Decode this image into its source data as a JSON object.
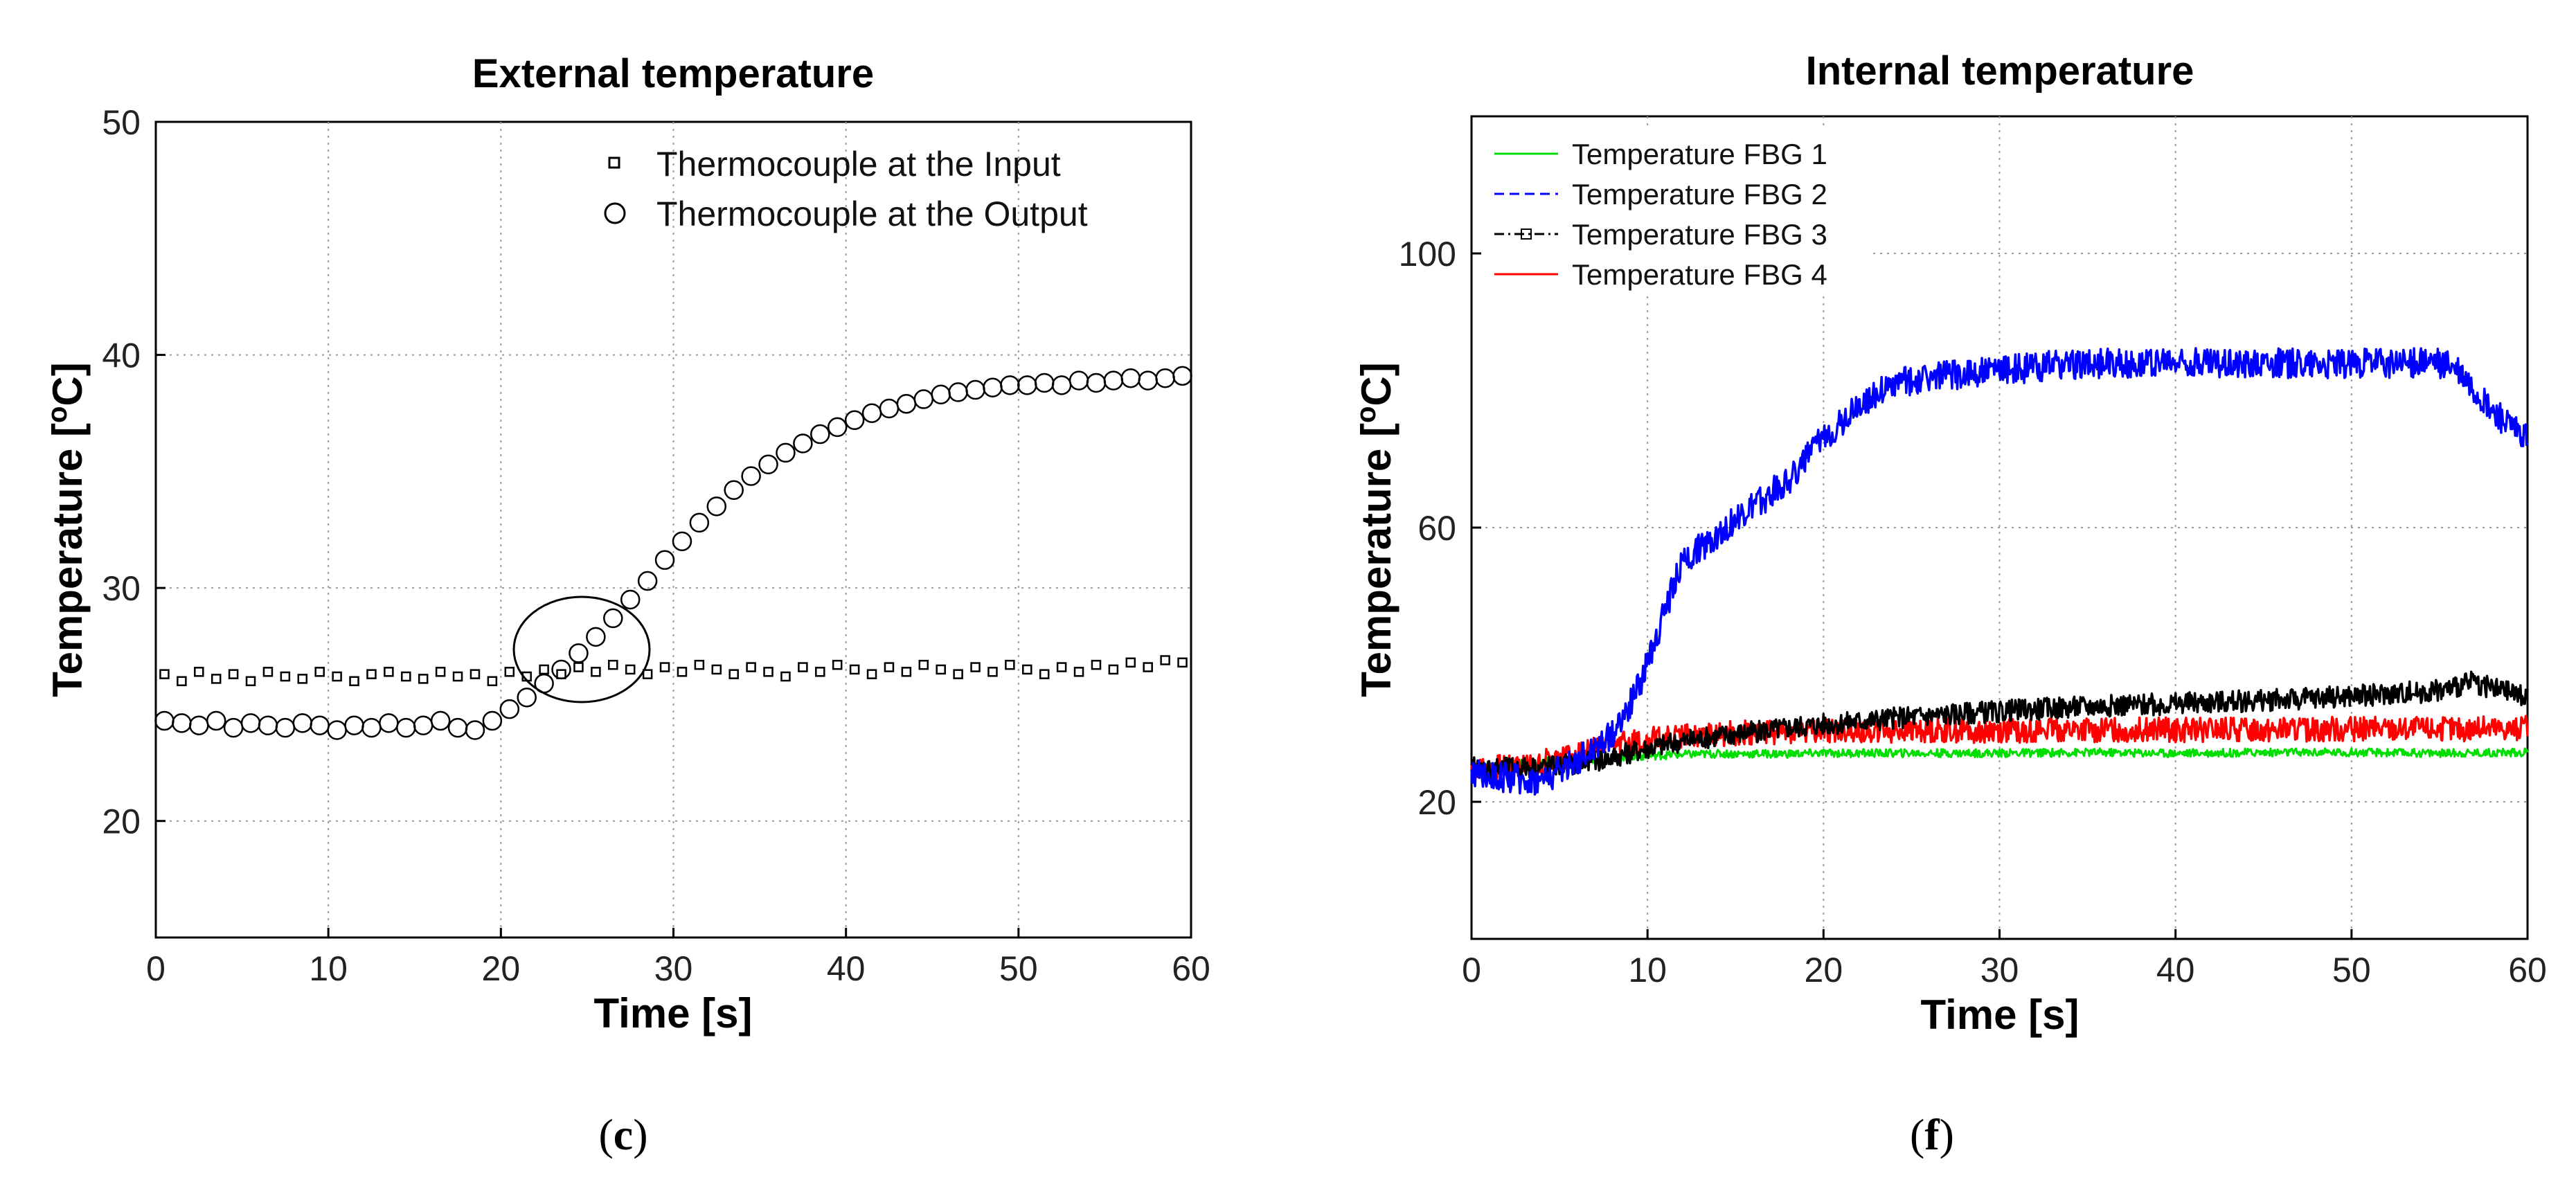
{
  "chart_data": [
    {
      "type": "scatter",
      "title": "External temperature",
      "xlabel": "Time [s]",
      "ylabel": "Temperature [",
      "ylabel_sup": "o",
      "ylabel_unit": "C]",
      "xlim": [
        0,
        60
      ],
      "ylim": [
        15,
        50
      ],
      "xticks": [
        0,
        10,
        20,
        30,
        40,
        50,
        60
      ],
      "yticks": [
        20,
        30,
        40,
        50
      ],
      "grid": true,
      "legend_position": "top-right",
      "caption_open": "(",
      "caption_letter": "c",
      "caption_close": ")",
      "annotation": "ellipse around the crossing of the two series near t = 25 s, 27 °C",
      "series": [
        {
          "name": "Thermocouple at the Input",
          "marker": "square",
          "color": "#000000",
          "x": [
            0.5,
            1.5,
            2.5,
            3.5,
            4.5,
            5.5,
            6.5,
            7.5,
            8.5,
            9.5,
            10.5,
            11.5,
            12.5,
            13.5,
            14.5,
            15.5,
            16.5,
            17.5,
            18.5,
            19.5,
            20.5,
            21.5,
            22.5,
            23.5,
            24.5,
            25.5,
            26.5,
            27.5,
            28.5,
            29.5,
            30.5,
            31.5,
            32.5,
            33.5,
            34.5,
            35.5,
            36.5,
            37.5,
            38.5,
            39.5,
            40.5,
            41.5,
            42.5,
            43.5,
            44.5,
            45.5,
            46.5,
            47.5,
            48.5,
            49.5,
            50.5,
            51.5,
            52.5,
            53.5,
            54.5,
            55.5,
            56.5,
            57.5,
            58.5,
            59.5
          ],
          "y": [
            26.3,
            26.0,
            26.4,
            26.1,
            26.3,
            26.0,
            26.4,
            26.2,
            26.1,
            26.4,
            26.2,
            26.0,
            26.3,
            26.4,
            26.2,
            26.1,
            26.4,
            26.2,
            26.3,
            26.0,
            26.4,
            26.2,
            26.5,
            26.3,
            26.6,
            26.4,
            26.7,
            26.5,
            26.3,
            26.6,
            26.4,
            26.7,
            26.5,
            26.3,
            26.6,
            26.4,
            26.2,
            26.6,
            26.4,
            26.7,
            26.5,
            26.3,
            26.6,
            26.4,
            26.7,
            26.5,
            26.3,
            26.6,
            26.4,
            26.7,
            26.5,
            26.3,
            26.6,
            26.4,
            26.7,
            26.5,
            26.8,
            26.6,
            26.9,
            26.8
          ]
        },
        {
          "name": "Thermocouple at the Output",
          "marker": "circle",
          "color": "#000000",
          "x": [
            0.5,
            1.5,
            2.5,
            3.5,
            4.5,
            5.5,
            6.5,
            7.5,
            8.5,
            9.5,
            10.5,
            11.5,
            12.5,
            13.5,
            14.5,
            15.5,
            16.5,
            17.5,
            18.5,
            19.5,
            20.5,
            21.5,
            22.5,
            23.5,
            24.5,
            25.5,
            26.5,
            27.5,
            28.5,
            29.5,
            30.5,
            31.5,
            32.5,
            33.5,
            34.5,
            35.5,
            36.5,
            37.5,
            38.5,
            39.5,
            40.5,
            41.5,
            42.5,
            43.5,
            44.5,
            45.5,
            46.5,
            47.5,
            48.5,
            49.5,
            50.5,
            51.5,
            52.5,
            53.5,
            54.5,
            55.5,
            56.5,
            57.5,
            58.5,
            59.5
          ],
          "y": [
            24.3,
            24.2,
            24.1,
            24.3,
            24.0,
            24.2,
            24.1,
            24.0,
            24.2,
            24.1,
            23.9,
            24.1,
            24.0,
            24.2,
            24.0,
            24.1,
            24.3,
            24.0,
            23.9,
            24.3,
            24.8,
            25.3,
            25.9,
            26.5,
            27.2,
            27.9,
            28.7,
            29.5,
            30.3,
            31.2,
            32.0,
            32.8,
            33.5,
            34.2,
            34.8,
            35.3,
            35.8,
            36.2,
            36.6,
            36.9,
            37.2,
            37.5,
            37.7,
            37.9,
            38.1,
            38.3,
            38.4,
            38.5,
            38.6,
            38.7,
            38.7,
            38.8,
            38.7,
            38.9,
            38.8,
            38.9,
            39.0,
            38.9,
            39.0,
            39.1
          ]
        }
      ]
    },
    {
      "type": "line",
      "title": "Internal temperature",
      "xlabel": "Time [s]",
      "ylabel": "Temperature [",
      "ylabel_sup": "o",
      "ylabel_unit": "C]",
      "xlim": [
        0,
        60
      ],
      "ylim": [
        0,
        120
      ],
      "xticks": [
        0,
        10,
        20,
        30,
        40,
        50,
        60
      ],
      "yticks": [
        20,
        60,
        100
      ],
      "grid": true,
      "legend_position": "top-left",
      "caption_open": "(",
      "caption_letter": "f",
      "caption_close": ")",
      "series": [
        {
          "name": "Temperature FBG 1",
          "color": "#00dd00",
          "style": "solid with x markers",
          "x": [
            0,
            2,
            4,
            6,
            8,
            10,
            12,
            14,
            16,
            18,
            20,
            25,
            30,
            35,
            40,
            45,
            50,
            55,
            60
          ],
          "y": [
            25,
            25.5,
            25.8,
            26.1,
            26.4,
            26.7,
            26.9,
            27.0,
            27.0,
            27.0,
            27.1,
            27.1,
            27.1,
            27.2,
            27.1,
            27.2,
            27.2,
            27.1,
            27.2
          ]
        },
        {
          "name": "Temperature FBG 2",
          "color": "#0000ff",
          "style": "dashed",
          "x": [
            0,
            2,
            4,
            6,
            8,
            9,
            10,
            11,
            12,
            14,
            16,
            18,
            20,
            22,
            24,
            26,
            30,
            35,
            40,
            45,
            50,
            55,
            56,
            57,
            58,
            59,
            60
          ],
          "y": [
            24,
            23.5,
            23,
            26,
            30,
            34,
            40,
            48,
            55,
            59,
            63,
            67,
            73,
            78,
            81,
            82,
            83,
            84,
            84,
            84,
            84,
            84,
            83,
            80,
            77,
            75,
            73
          ]
        },
        {
          "name": "Temperature FBG 3",
          "color": "#000000",
          "style": "dash-dot with square markers",
          "x": [
            0,
            2,
            4,
            6,
            8,
            10,
            12,
            14,
            16,
            18,
            20,
            25,
            30,
            35,
            40,
            45,
            50,
            55,
            57,
            58,
            60
          ],
          "y": [
            25,
            25,
            25.2,
            25.5,
            26.5,
            27.8,
            28.8,
            29.6,
            30.2,
            30.8,
            31.3,
            32.4,
            33.2,
            33.9,
            34.3,
            34.8,
            35.4,
            36.2,
            37.5,
            36.5,
            35.5
          ]
        },
        {
          "name": "Temperature FBG 4",
          "color": "#ff0000",
          "style": "solid with + markers",
          "x": [
            0,
            2,
            4,
            6,
            8,
            10,
            12,
            14,
            16,
            18,
            20,
            25,
            30,
            35,
            40,
            45,
            50,
            55,
            60
          ],
          "y": [
            25,
            25.2,
            25.8,
            27.0,
            28.2,
            29.1,
            29.6,
            29.9,
            30.1,
            30.2,
            30.3,
            30.4,
            30.4,
            30.5,
            30.5,
            30.5,
            30.6,
            30.6,
            30.7
          ]
        }
      ]
    }
  ]
}
